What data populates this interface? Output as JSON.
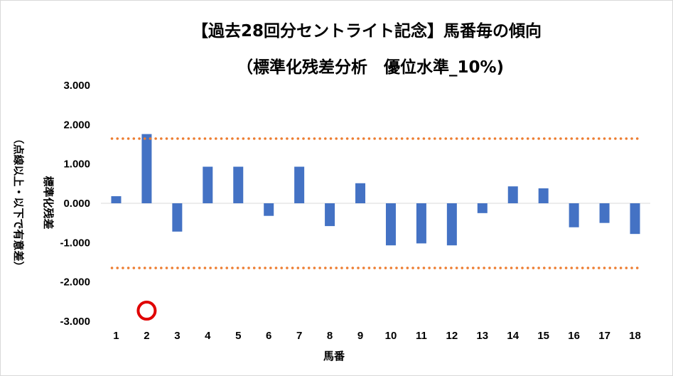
{
  "chart_data": {
    "type": "bar",
    "title_line1": "【過去28回分セントライト記念】馬番毎の傾向",
    "title_line2": "（標準化残差分析　優位水準_10%)",
    "xlabel": "馬番",
    "ylabel_main": "標準化残差",
    "ylabel_note": "（点線以上・以下で有意差）",
    "categories": [
      "1",
      "2",
      "3",
      "4",
      "5",
      "6",
      "7",
      "8",
      "9",
      "10",
      "11",
      "12",
      "13",
      "14",
      "15",
      "16",
      "17",
      "18"
    ],
    "values": [
      0.18,
      1.76,
      -0.72,
      0.93,
      0.93,
      -0.32,
      0.93,
      -0.58,
      0.51,
      -1.07,
      -1.02,
      -1.07,
      -0.25,
      0.43,
      0.38,
      -0.61,
      -0.5,
      -0.78
    ],
    "ylim": [
      -3,
      3
    ],
    "yticks": [
      3,
      2,
      1,
      0,
      -1,
      -2,
      -3
    ],
    "ytick_labels": [
      "3.000",
      "2.000",
      "1.000",
      "0.000",
      "-1.000",
      "-2.000",
      "-3.000"
    ],
    "thresholds": [
      1.645,
      -1.645
    ],
    "highlight_category": "2",
    "grid": false,
    "colors": {
      "bar": "#4472c4",
      "threshold": "#ed7d31",
      "marker_ring": "#e00000",
      "axis": "#d9d9d9"
    }
  }
}
